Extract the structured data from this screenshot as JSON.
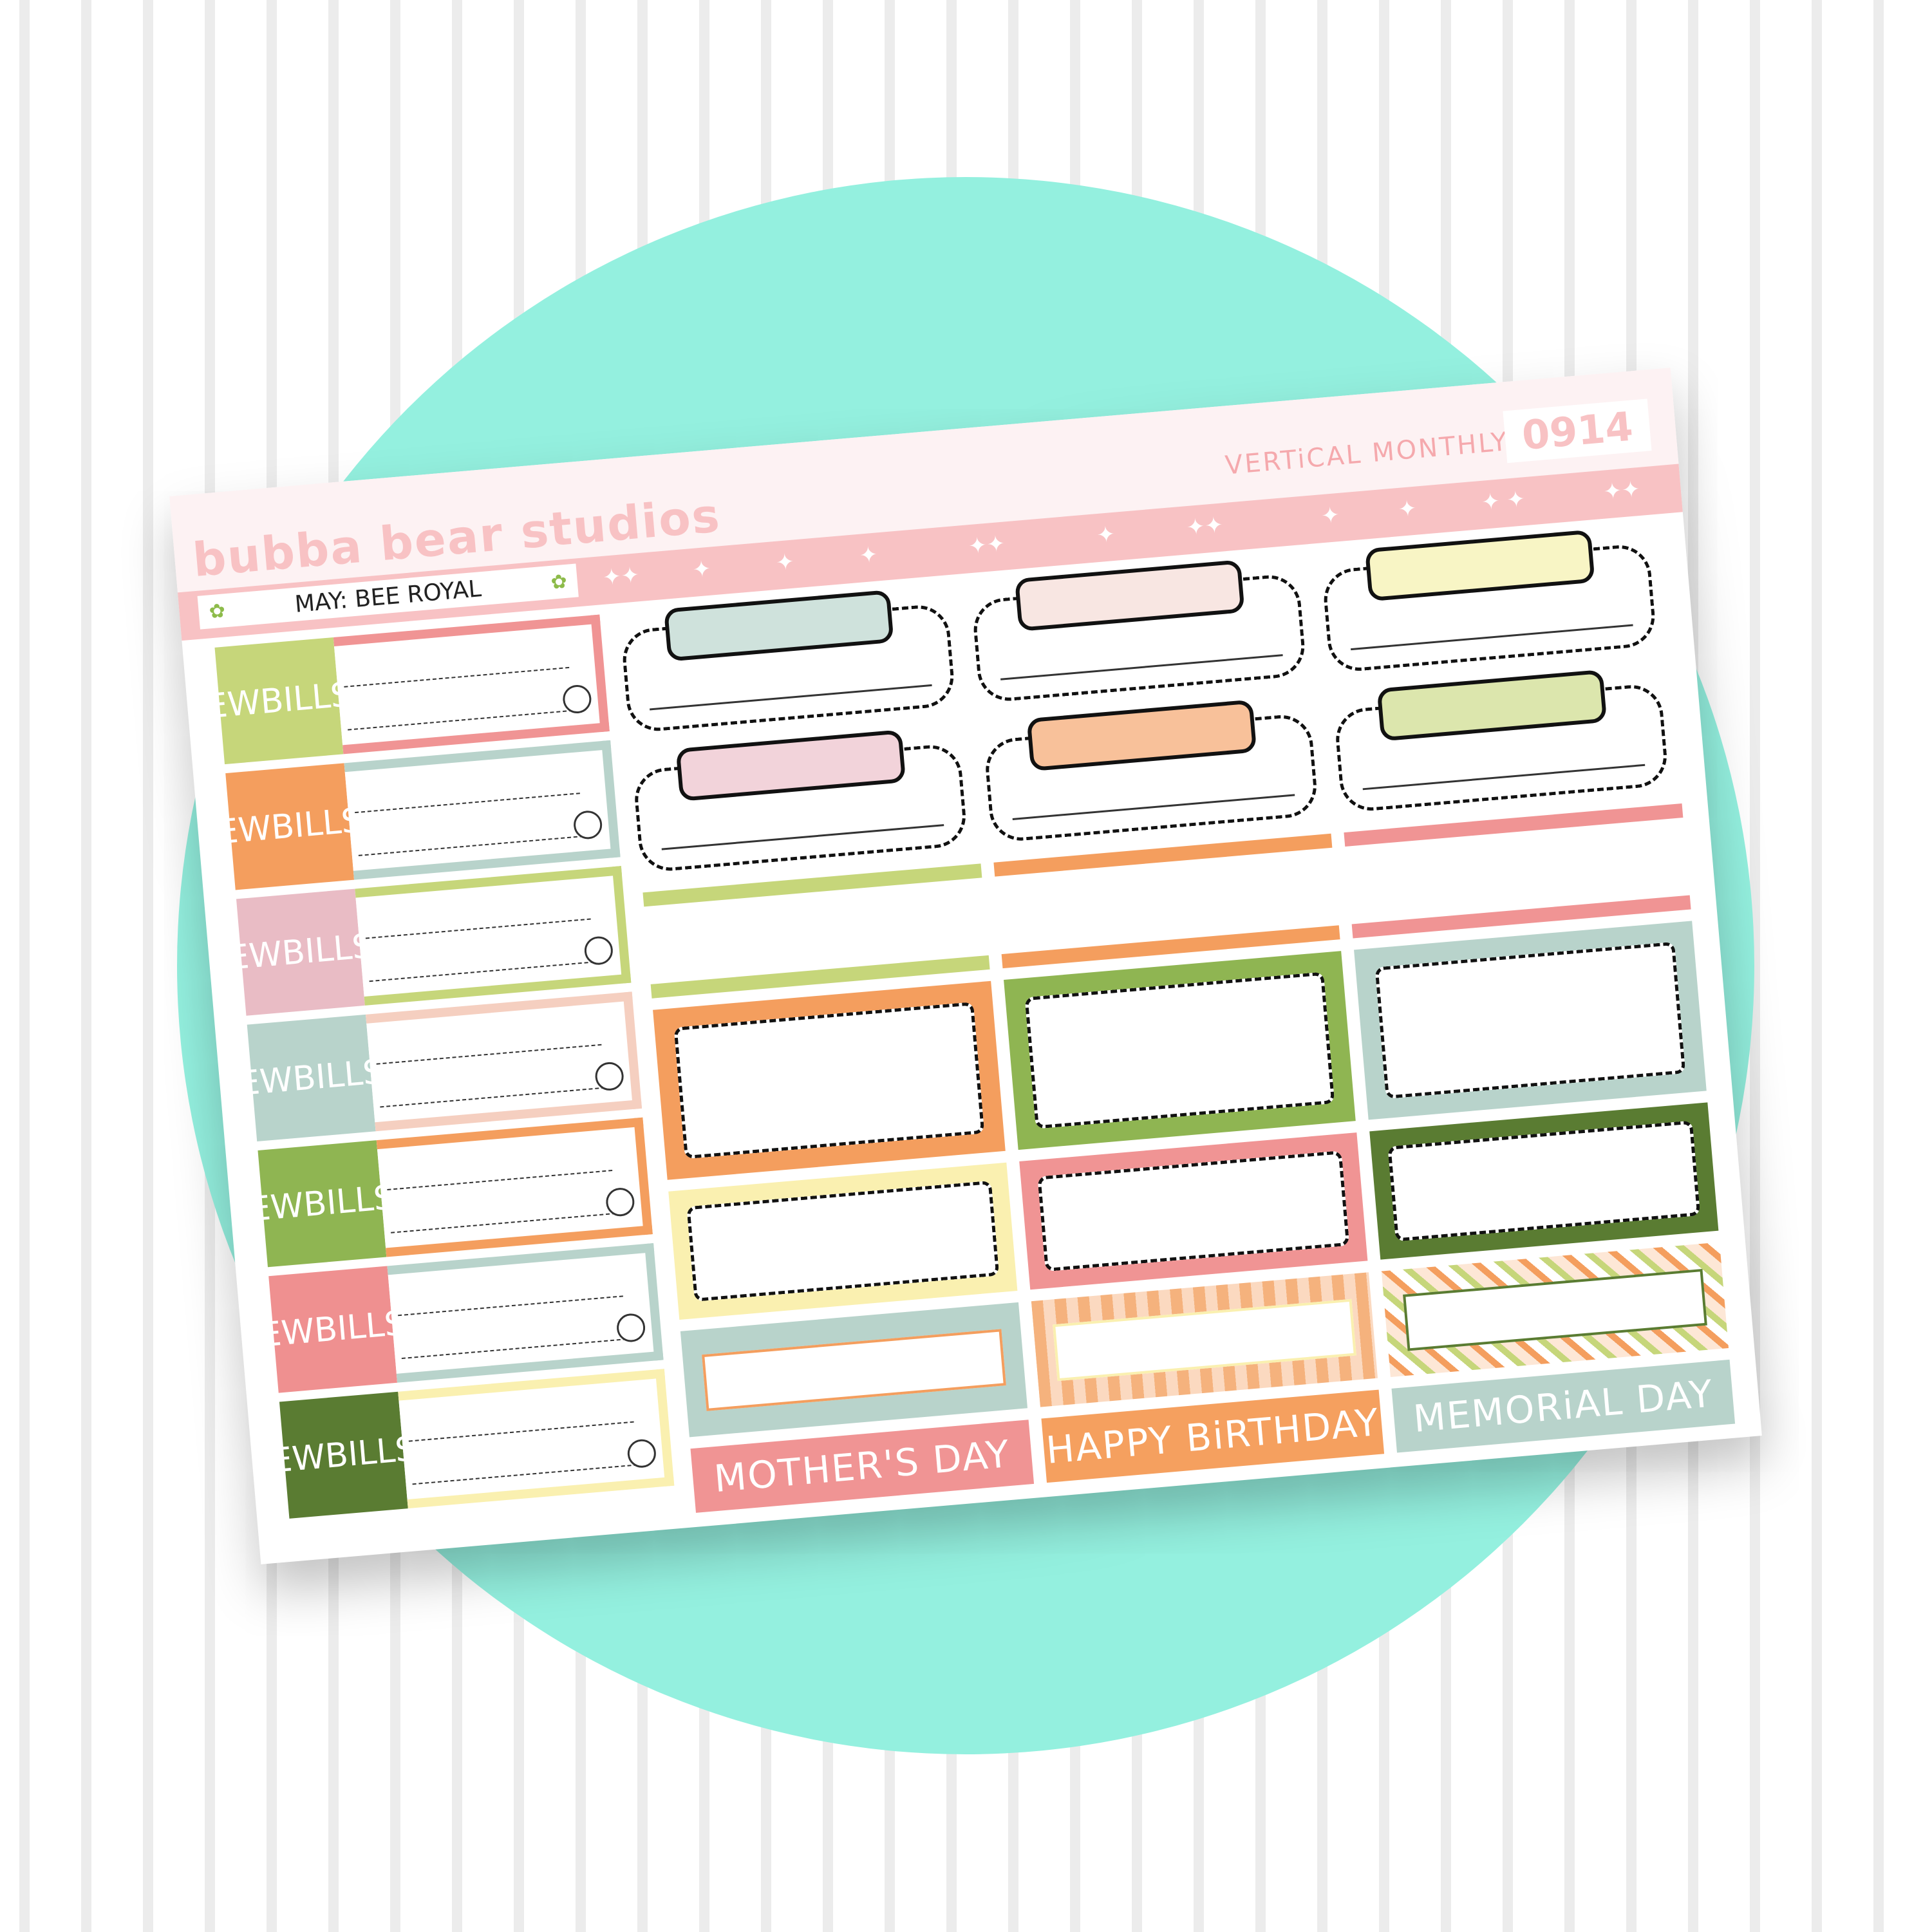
{
  "header": {
    "brand": "bubba bear studios",
    "series": "VERTiCAL MONTHLY",
    "code": "0914"
  },
  "theme_banner": {
    "text": "MAY: BEE ROYAL",
    "icon": "flower-icon"
  },
  "bill_stickers": {
    "label_line1": "EW",
    "label_line2": "BILLS",
    "items": [
      {
        "label_color": "#c6d67a",
        "frame_color": "#f09494"
      },
      {
        "label_color": "#f49e5e",
        "frame_color": "#b8d3cb"
      },
      {
        "label_color": "#e9bcc5",
        "frame_color": "#c6d67a"
      },
      {
        "label_color": "#b8d3cb",
        "frame_color": "#f5cfc0"
      },
      {
        "label_color": "#8fb552",
        "frame_color": "#f49e5e"
      },
      {
        "label_color": "#ef9090",
        "frame_color": "#b8d3cb"
      },
      {
        "label_color": "#5a7c32",
        "frame_color": "#faf0b0"
      }
    ]
  },
  "pill_colors": [
    [
      "#cfe2dc",
      "#f8e6e2",
      "#f8f5c5"
    ],
    [
      "#f2d3da",
      "#f8c19a",
      "#dce6ad"
    ]
  ],
  "strip_colors": [
    "#c6d67a",
    "#f49e5e",
    "#f09494"
  ],
  "box_colors": [
    [
      "#f49e5e",
      "#8fb552",
      "#b8d3cb"
    ],
    [
      "#faf0b0",
      "#f09494",
      "#5a7c32"
    ]
  ],
  "banner_colors": [
    "#b8d3cb",
    "#f49e5e",
    "#f09494"
  ],
  "holidays": [
    {
      "text": "MOTHER'S DAY",
      "color": "#f09494"
    },
    {
      "text": "HAPPY BiRTHDAY",
      "color": "#f5a05f"
    },
    {
      "text": "MEMORiAL DAY",
      "color": "#b8d3cb"
    }
  ]
}
